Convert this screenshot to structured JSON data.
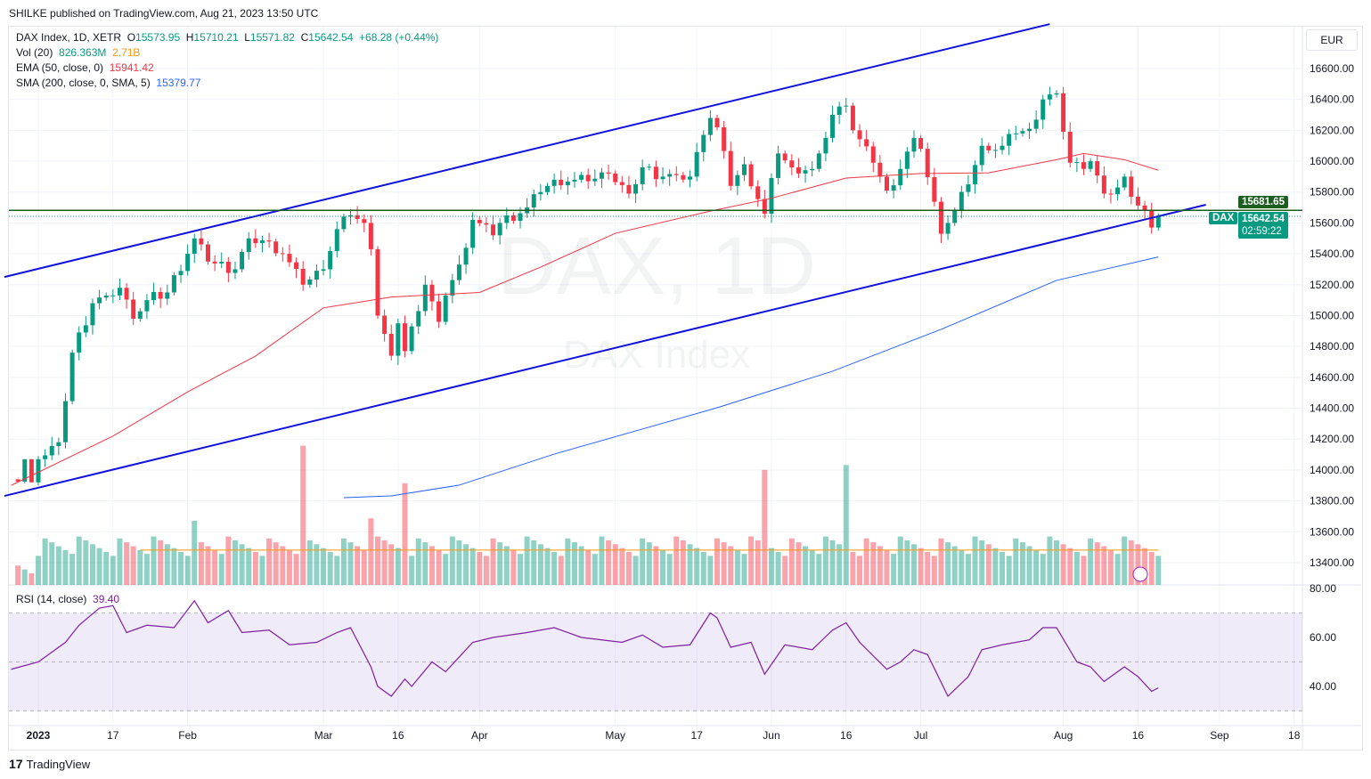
{
  "header": {
    "publisher": "SHILKE published on TradingView.com, Aug 21, 2023 13:50 UTC"
  },
  "legend": {
    "symbol": "DAX Index, 1D, XETR",
    "o_label": "O",
    "open": "15573.95",
    "h_label": "H",
    "high": "15710.21",
    "l_label": "L",
    "low": "15571.82",
    "c_label": "C",
    "close": "15642.54",
    "change": "+68.28 (+0.44%)",
    "vol_label": "Vol (20)",
    "vol": "826.363M",
    "vol_ma": "2.71B",
    "ema_label": "EMA (50, close, 0)",
    "ema": "15941.42",
    "sma_label": "SMA (200, close, 0, SMA, 5)",
    "sma": "15379.77",
    "rsi_label": "RSI (14, close)",
    "rsi": "39.40"
  },
  "currency": "EUR",
  "watermark": {
    "big": "DAX, 1D",
    "small": "DAX Index"
  },
  "price_tags": {
    "line_price": "15681.65",
    "symbol": "DAX",
    "last": "15642.54",
    "countdown": "02:59:22"
  },
  "colors": {
    "up": "#089981",
    "down": "#f23645",
    "ema": "#f23645",
    "sma": "#2962ff",
    "channel": "#1111dd",
    "hline": "#1b5e20",
    "rsi": "#7e1fa0"
  },
  "footer": {
    "brand": "TradingView"
  },
  "chart_data": {
    "type": "candlestick",
    "y_ticks": [
      "13400.00",
      "13600.00",
      "13800.00",
      "14000.00",
      "14200.00",
      "14400.00",
      "14600.00",
      "14800.00",
      "15000.00",
      "15200.00",
      "15400.00",
      "15600.00",
      "15800.00",
      "16000.00",
      "16200.00",
      "16400.00",
      "16600.00"
    ],
    "rsi_ticks": [
      "80.00",
      "60.00",
      "40.00"
    ],
    "x_ticks": [
      [
        "2023",
        "2023-01-02"
      ],
      [
        "17",
        "2023-01-17"
      ],
      [
        "Feb",
        "2023-02-01"
      ],
      [
        "Mar",
        "2023-03-01"
      ],
      [
        "16",
        "2023-03-16"
      ],
      [
        "Apr",
        "2023-04-03"
      ],
      [
        "May",
        "2023-05-01"
      ],
      [
        "17",
        "2023-05-17"
      ],
      [
        "Jun",
        "2023-06-01"
      ],
      [
        "16",
        "2023-06-16"
      ],
      [
        "Jul",
        "2023-07-03"
      ],
      [
        "Aug",
        "2023-08-01"
      ],
      [
        "16",
        "2023-08-16"
      ],
      [
        "Sep",
        "2023-09-01"
      ],
      [
        "18",
        "2023-09-18"
      ]
    ],
    "closes": [
      [
        "2022-12-27",
        13940
      ],
      [
        "2022-12-28",
        13925
      ],
      [
        "2022-12-29",
        14070
      ],
      [
        "2022-12-30",
        13920
      ],
      [
        "2023-01-02",
        14070
      ],
      [
        "2023-01-05",
        14180
      ],
      [
        "2023-01-09",
        14760
      ],
      [
        "2023-01-12",
        15080
      ],
      [
        "2023-01-16",
        15130
      ],
      [
        "2023-01-18",
        15180
      ],
      [
        "2023-01-20",
        14980
      ],
      [
        "2023-01-24",
        15100
      ],
      [
        "2023-01-27",
        15150
      ],
      [
        "2023-02-02",
        15500
      ],
      [
        "2023-02-06",
        15350
      ],
      [
        "2023-02-10",
        15300
      ],
      [
        "2023-02-14",
        15500
      ],
      [
        "2023-02-17",
        15480
      ],
      [
        "2023-02-21",
        15400
      ],
      [
        "2023-02-24",
        15200
      ],
      [
        "2023-03-01",
        15300
      ],
      [
        "2023-03-03",
        15560
      ],
      [
        "2023-03-07",
        15650
      ],
      [
        "2023-03-09",
        15600
      ],
      [
        "2023-03-10",
        15430
      ],
      [
        "2023-03-13",
        15000
      ],
      [
        "2023-03-15",
        14740
      ],
      [
        "2023-03-16",
        14950
      ],
      [
        "2023-03-17",
        14770
      ],
      [
        "2023-03-20",
        14930
      ],
      [
        "2023-03-22",
        15200
      ],
      [
        "2023-03-24",
        14960
      ],
      [
        "2023-03-27",
        15130
      ],
      [
        "2023-03-29",
        15330
      ],
      [
        "2023-03-31",
        15620
      ],
      [
        "2023-04-05",
        15520
      ],
      [
        "2023-04-06",
        15600
      ],
      [
        "2023-04-12",
        15700
      ],
      [
        "2023-04-14",
        15800
      ],
      [
        "2023-04-18",
        15880
      ],
      [
        "2023-04-21",
        15880
      ],
      [
        "2023-04-25",
        15870
      ],
      [
        "2023-04-28",
        15920
      ],
      [
        "2023-05-03",
        15790
      ],
      [
        "2023-05-05",
        15960
      ],
      [
        "2023-05-10",
        15900
      ],
      [
        "2023-05-12",
        15910
      ],
      [
        "2023-05-16",
        15900
      ],
      [
        "2023-05-18",
        16170
      ],
      [
        "2023-05-19",
        16280
      ],
      [
        "2023-05-22",
        16220
      ],
      [
        "2023-05-24",
        15840
      ],
      [
        "2023-05-26",
        15980
      ],
      [
        "2023-05-31",
        15660
      ],
      [
        "2023-06-02",
        16050
      ],
      [
        "2023-06-06",
        15960
      ],
      [
        "2023-06-09",
        15950
      ],
      [
        "2023-06-12",
        16050
      ],
      [
        "2023-06-14",
        16300
      ],
      [
        "2023-06-16",
        16360
      ],
      [
        "2023-06-19",
        16200
      ],
      [
        "2023-06-22",
        15990
      ],
      [
        "2023-06-26",
        15810
      ],
      [
        "2023-06-28",
        15950
      ],
      [
        "2023-06-30",
        16150
      ],
      [
        "2023-07-03",
        16080
      ],
      [
        "2023-07-06",
        15530
      ],
      [
        "2023-07-07",
        15600
      ],
      [
        "2023-07-10",
        15680
      ],
      [
        "2023-07-12",
        15850
      ],
      [
        "2023-07-14",
        16100
      ],
      [
        "2023-07-17",
        16070
      ],
      [
        "2023-07-19",
        16100
      ],
      [
        "2023-07-21",
        16180
      ],
      [
        "2023-07-25",
        16210
      ],
      [
        "2023-07-27",
        16400
      ],
      [
        "2023-07-31",
        16440
      ],
      [
        "2023-08-02",
        15990
      ],
      [
        "2023-08-04",
        15950
      ],
      [
        "2023-08-07",
        16000
      ],
      [
        "2023-08-09",
        15790
      ],
      [
        "2023-08-11",
        15830
      ],
      [
        "2023-08-14",
        15900
      ],
      [
        "2023-08-15",
        15770
      ],
      [
        "2023-08-17",
        15680
      ],
      [
        "2023-08-18",
        15570
      ],
      [
        "2023-08-21",
        15642.54
      ]
    ],
    "volume_spikes_B": [
      [
        "2023-02-24",
        11.5
      ],
      [
        "2023-03-17",
        8.4
      ],
      [
        "2023-05-31",
        9.5
      ],
      [
        "2023-06-16",
        9.9
      ],
      [
        "2023-02-02",
        5.3
      ],
      [
        "2023-03-10",
        5.5
      ]
    ],
    "volume_typical_B": 3.2,
    "ema": [
      [
        "2022-12-27",
        13900
      ],
      [
        "2023-01-17",
        14220
      ],
      [
        "2023-02-01",
        14506
      ],
      [
        "2023-02-15",
        14738
      ],
      [
        "2023-03-01",
        15050
      ],
      [
        "2023-03-15",
        15120
      ],
      [
        "2023-04-03",
        15150
      ],
      [
        "2023-04-14",
        15314
      ],
      [
        "2023-05-01",
        15533
      ],
      [
        "2023-05-19",
        15677
      ],
      [
        "2023-06-01",
        15760
      ],
      [
        "2023-06-16",
        15891
      ],
      [
        "2023-07-03",
        15920
      ],
      [
        "2023-07-17",
        15925
      ],
      [
        "2023-07-31",
        16010
      ],
      [
        "2023-08-04",
        16050
      ],
      [
        "2023-08-14",
        16010
      ],
      [
        "2023-08-21",
        15941.42
      ]
    ],
    "sma": [
      [
        "2023-03-06",
        13821
      ],
      [
        "2023-03-15",
        13832
      ],
      [
        "2023-03-29",
        13902
      ],
      [
        "2023-04-18",
        14103
      ],
      [
        "2023-05-22",
        14403
      ],
      [
        "2023-06-14",
        14640
      ],
      [
        "2023-07-06",
        14911
      ],
      [
        "2023-07-31",
        15228
      ],
      [
        "2023-08-21",
        15379.77
      ]
    ],
    "trendlines": [
      [
        [
          "2022-12-26",
          15250
        ],
        [
          "2023-07-28",
          16888
        ]
      ],
      [
        [
          "2022-12-26",
          13832
        ],
        [
          "2023-08-30",
          15718
        ]
      ]
    ],
    "hline": 15681.65,
    "rsi": [
      [
        "2022-12-27",
        47
      ],
      [
        "2023-01-02",
        50
      ],
      [
        "2023-01-06",
        58
      ],
      [
        "2023-01-10",
        65
      ],
      [
        "2023-01-13",
        72
      ],
      [
        "2023-01-17",
        73
      ],
      [
        "2023-01-19",
        62
      ],
      [
        "2023-01-24",
        65
      ],
      [
        "2023-01-30",
        64
      ],
      [
        "2023-02-02",
        75
      ],
      [
        "2023-02-06",
        66
      ],
      [
        "2023-02-09",
        71
      ],
      [
        "2023-02-13",
        62
      ],
      [
        "2023-02-17",
        63
      ],
      [
        "2023-02-22",
        57
      ],
      [
        "2023-02-28",
        58
      ],
      [
        "2023-03-03",
        62
      ],
      [
        "2023-03-07",
        64
      ],
      [
        "2023-03-10",
        48
      ],
      [
        "2023-03-13",
        40
      ],
      [
        "2023-03-15",
        36
      ],
      [
        "2023-03-17",
        43
      ],
      [
        "2023-03-20",
        40
      ],
      [
        "2023-03-23",
        50
      ],
      [
        "2023-03-27",
        46
      ],
      [
        "2023-03-31",
        58
      ],
      [
        "2023-04-05",
        60
      ],
      [
        "2023-04-12",
        62
      ],
      [
        "2023-04-18",
        64
      ],
      [
        "2023-04-24",
        60
      ],
      [
        "2023-05-02",
        58
      ],
      [
        "2023-05-05",
        61
      ],
      [
        "2023-05-10",
        56
      ],
      [
        "2023-05-16",
        57
      ],
      [
        "2023-05-19",
        70
      ],
      [
        "2023-05-22",
        68
      ],
      [
        "2023-05-24",
        56
      ],
      [
        "2023-05-29",
        58
      ],
      [
        "2023-05-31",
        45
      ],
      [
        "2023-06-05",
        57
      ],
      [
        "2023-06-09",
        55
      ],
      [
        "2023-06-14",
        63
      ],
      [
        "2023-06-16",
        66
      ],
      [
        "2023-06-20",
        58
      ],
      [
        "2023-06-26",
        47
      ],
      [
        "2023-06-28",
        50
      ],
      [
        "2023-06-30",
        55
      ],
      [
        "2023-07-04",
        53
      ],
      [
        "2023-07-07",
        36
      ],
      [
        "2023-07-12",
        44
      ],
      [
        "2023-07-14",
        55
      ],
      [
        "2023-07-19",
        57
      ],
      [
        "2023-07-25",
        59
      ],
      [
        "2023-07-27",
        64
      ],
      [
        "2023-07-31",
        64
      ],
      [
        "2023-08-03",
        50
      ],
      [
        "2023-08-07",
        48
      ],
      [
        "2023-08-09",
        42
      ],
      [
        "2023-08-14",
        48
      ],
      [
        "2023-08-16",
        44
      ],
      [
        "2023-08-18",
        38
      ],
      [
        "2023-08-21",
        39.4
      ]
    ],
    "rsi_band": [
      30,
      70
    ]
  }
}
